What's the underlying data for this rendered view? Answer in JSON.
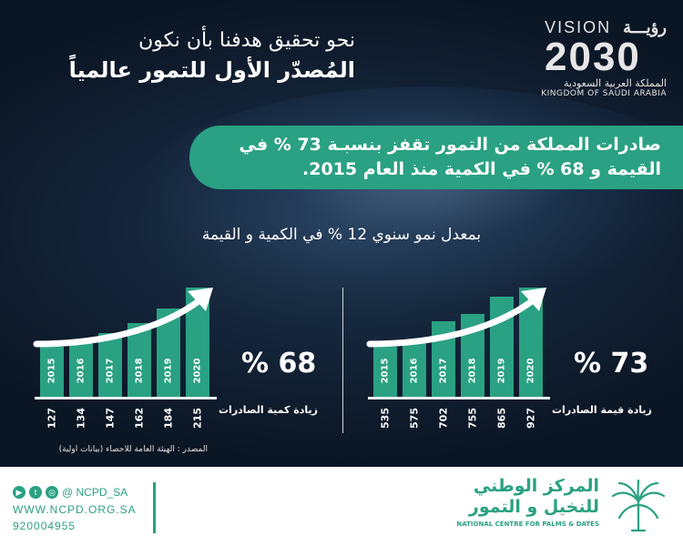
{
  "headline": {
    "line1": "نحو تحقيق هدفنا بأن نكون",
    "line2": "المُصدّر الأول للتمور عالمياً"
  },
  "vision_logo": {
    "word_en": "VISION",
    "word_ar": "رؤيـــة",
    "year": "2030",
    "kingdom_ar": "المملكة العربية السعودية",
    "kingdom_en": "KINGDOM OF SAUDI ARABIA"
  },
  "banner": {
    "text": "صادرات المملكة من التمور تقفز بنسبـة 73 % في القيمة و 68 % في الكمية منذ العام 2015."
  },
  "subtitle": "بمعدل نمو سنوي 12 % في الكمية و القيمة",
  "colors": {
    "accent": "#2aa182",
    "background": "#13243a",
    "text": "#ffffff"
  },
  "chart_data": [
    {
      "type": "bar",
      "categories": [
        "2015",
        "2016",
        "2017",
        "2018",
        "2019",
        "2020"
      ],
      "values": [
        127,
        134,
        147,
        162,
        184,
        215
      ],
      "value_labels": [
        "127",
        "134",
        "147",
        "162",
        "184",
        "215"
      ],
      "increase_text": "% 68",
      "label": "زيادة كمية الصادرات"
    },
    {
      "type": "bar",
      "categories": [
        "2015",
        "2016",
        "2017",
        "2018",
        "2019",
        "2020"
      ],
      "values": [
        535,
        575,
        702,
        755,
        865,
        927
      ],
      "value_labels": [
        "535",
        "575",
        "702",
        "755",
        "865",
        "927"
      ],
      "increase_text": "% 73",
      "label": "زيادة قيمة الصادرات"
    }
  ],
  "source": "المصدر : الهيئة العامة للاحصاء (بيانات اولية)",
  "footer": {
    "handle": "@ NCPD_SA",
    "website": "WWW.NCPD.ORG.SA",
    "phone": "920004955",
    "org_ar_line1": "المركز الوطني",
    "org_ar_line2": "للنخيل و التمور",
    "org_en": "NATIONAL CENTRE FOR PALMS & DATES",
    "social_icons": [
      "youtube-icon",
      "twitter-icon",
      "instagram-icon"
    ]
  }
}
